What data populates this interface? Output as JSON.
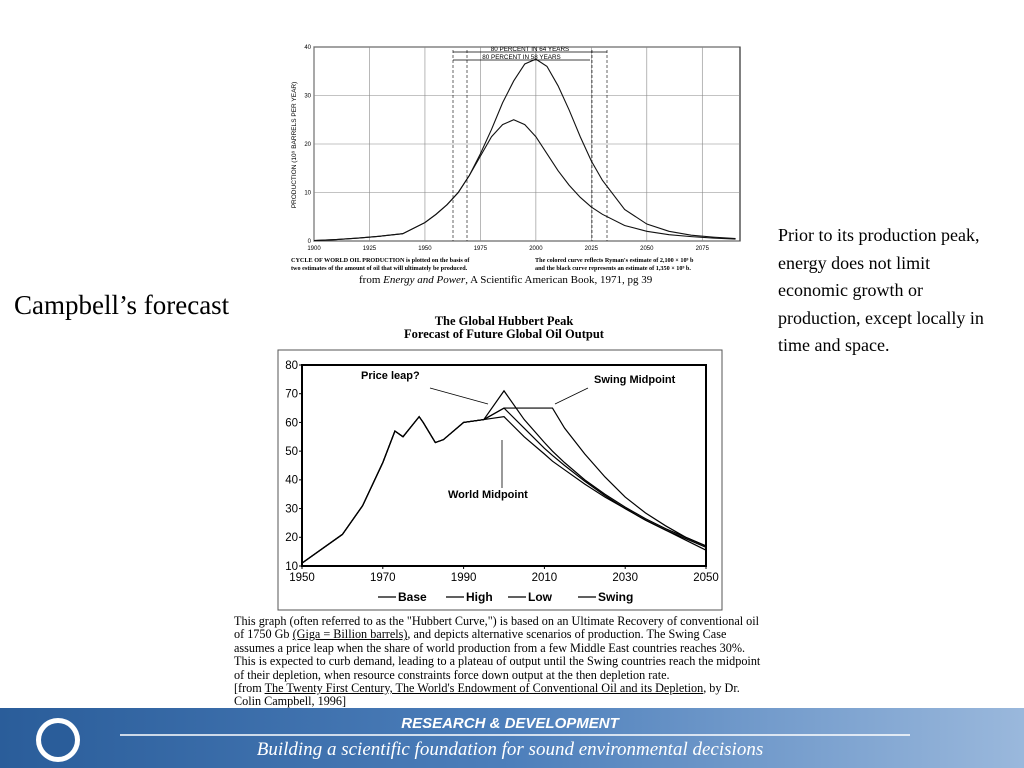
{
  "slide": {
    "title": "Campbell’s forecast",
    "side_text": "Prior to its production peak, energy does not limit economic growth or production, except locally in time and space.",
    "footer": {
      "line1": "RESEARCH &  DEVELOPMENT",
      "line2": "Building a scientific foundation for sound environmental decisions"
    }
  },
  "chart_data": [
    {
      "type": "line",
      "ylabel": "PRODUCTION (10⁹ BARRELS PER YEAR)",
      "annotations": [
        "80 PERCENT IN 64 YEARS",
        "80 PERCENT IN 58 YEARS"
      ],
      "caption_left": [
        "CYCLE OF WORLD OIL PRODUCTION is plotted on the basis of",
        "two estimates of the amount of oil that will ultimately be produced."
      ],
      "caption_right": [
        "The colored curve reflects Ryman's estimate of 2,100 × 10⁹ b",
        "and the black curve represents an estimate of 1,350 × 10⁹ b."
      ],
      "source": [
        "from ",
        "Energy and Power",
        ", A Scientific American Book, 1971, pg 39"
      ],
      "x": [
        1900,
        1910,
        1920,
        1930,
        1940,
        1950,
        1955,
        1960,
        1965,
        1970,
        1975,
        1980,
        1985,
        1990,
        1995,
        2000,
        2005,
        2010,
        2015,
        2020,
        2025,
        2030,
        2040,
        2050,
        2060,
        2070,
        2080,
        2090
      ],
      "series": [
        {
          "color": "#111111",
          "values": [
            0.1,
            0.3,
            0.6,
            1,
            1.5,
            3.8,
            5.5,
            7.5,
            10,
            13.5,
            18,
            23,
            28.5,
            33,
            36.5,
            37.5,
            36,
            32,
            27,
            21.5,
            16.5,
            12.5,
            6.5,
            3.5,
            2,
            1.2,
            0.8,
            0.5
          ]
        },
        {
          "color": "#111111",
          "values": [
            0.1,
            0.3,
            0.6,
            1,
            1.5,
            3.8,
            5.5,
            7.5,
            10,
            13.5,
            17.5,
            21.5,
            24,
            25,
            24,
            21.5,
            18,
            14.5,
            11.5,
            9,
            7,
            5.5,
            3.2,
            2,
            1.3,
            0.9,
            0.6,
            0.4
          ]
        }
      ],
      "xlim": [
        1900,
        2092
      ],
      "xticks": [
        1900,
        1925,
        1950,
        1975,
        2000,
        2025,
        2050,
        2075
      ],
      "ylim": [
        0,
        40
      ],
      "yticks": [
        0,
        10,
        20,
        30,
        40
      ],
      "grid": true
    },
    {
      "type": "line",
      "title": "The Global Hubbert Peak",
      "subtitle": "Forecast of Future Global Oil Output",
      "annotations": [
        "Price leap?",
        "Swing Midpoint",
        "World Midpoint"
      ],
      "x": [
        1950,
        1955,
        1960,
        1965,
        1970,
        1973,
        1975,
        1979,
        1980,
        1983,
        1985,
        1990,
        1995,
        2000,
        2005,
        2010,
        2012,
        2015,
        2020,
        2025,
        2030,
        2035,
        2040,
        2045,
        2050
      ],
      "series": [
        {
          "name": "Base",
          "color": "#000000",
          "values": [
            11,
            16,
            21,
            31,
            46,
            57,
            55,
            62,
            60,
            53,
            54,
            60,
            61,
            65,
            58,
            51,
            48.5,
            45,
            39.5,
            34.5,
            30,
            26,
            22.5,
            19.5,
            16.5
          ]
        },
        {
          "name": "High",
          "color": "#000000",
          "values": [
            11,
            16,
            21,
            31,
            46,
            57,
            55,
            62,
            60,
            53,
            54,
            60,
            61,
            71,
            61,
            53,
            50,
            46,
            40,
            35,
            30.5,
            26.5,
            23,
            20,
            17
          ]
        },
        {
          "name": "Low",
          "color": "#000000",
          "values": [
            11,
            16,
            21,
            31,
            46,
            57,
            55,
            62,
            60,
            53,
            54,
            60,
            61,
            62,
            55,
            49,
            46.5,
            43.5,
            38.5,
            34,
            30,
            26,
            22.5,
            19,
            15.5
          ]
        },
        {
          "name": "Swing",
          "color": "#000000",
          "values": [
            11,
            16,
            21,
            31,
            46,
            57,
            55,
            62,
            60,
            53,
            54,
            60,
            61,
            65,
            65,
            65,
            65,
            58,
            49,
            41,
            34,
            28.5,
            24,
            20,
            17
          ]
        }
      ],
      "xlim": [
        1950,
        2050
      ],
      "xticks": [
        1950,
        1970,
        1990,
        2010,
        2030,
        2050
      ],
      "ylim": [
        10,
        80
      ],
      "yticks": [
        10,
        20,
        30,
        40,
        50,
        60,
        70,
        80
      ],
      "legend": "bottom",
      "caption": [
        "This graph (often referred to as the \"Hubbert Curve,\") is based on an Ultimate Recovery of conventional oil of 1750 Gb ",
        "(Giga = Billion barrels)",
        ", and depicts alternative scenarios of production. The Swing Case assumes a price leap when the share of world production from a few Middle East countries reaches 30%. This is expected to curb demand, leading to a plateau of output until the Swing countries reach the midpoint of their depletion, when resource constraints force down output at the then depletion rate.",
        "[from ",
        "The Twenty First Century, The World's Endowment of Conventional Oil and its Depletion",
        ", by Dr. Colin Campbell, 1996]"
      ]
    }
  ]
}
